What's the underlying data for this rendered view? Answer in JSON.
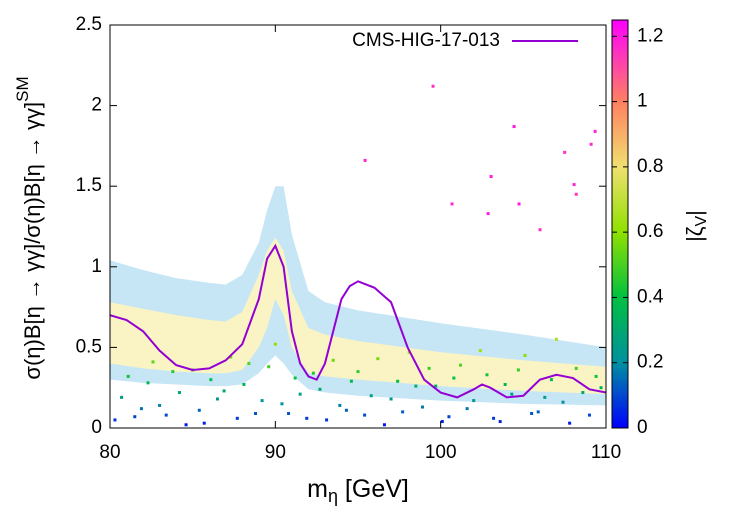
{
  "chart_data": {
    "type": "scatter",
    "xlabel": {
      "text": "m",
      "sub": "η",
      "tail": " [GeV]"
    },
    "ylabel": {
      "text": "σ(η)B[η → γγ]/σ(η)B[η → γγ]",
      "sup": "SM"
    },
    "clabel": {
      "text": "|ζ",
      "sub": "V",
      "tail": "|"
    },
    "xlim": [
      80,
      110
    ],
    "xticks": [
      80,
      90,
      100,
      110
    ],
    "ylim": [
      0,
      2.5
    ],
    "yticks": [
      0,
      0.5,
      1,
      1.5,
      2,
      2.5
    ],
    "clim": [
      0,
      1.25
    ],
    "cticks": [
      0,
      0.2,
      0.4,
      0.6,
      0.8,
      1,
      1.2
    ],
    "colormap": [
      {
        "value": 0,
        "color": "#0000ff"
      },
      {
        "value": 0.2,
        "color": "#0090a0"
      },
      {
        "value": 0.4,
        "color": "#00c040"
      },
      {
        "value": 0.6,
        "color": "#90e000"
      },
      {
        "value": 0.8,
        "color": "#f0e070"
      },
      {
        "value": 1.0,
        "color": "#ff8060"
      },
      {
        "value": 1.25,
        "color": "#ff00ff"
      }
    ],
    "bands": [
      {
        "color": "#c6e6f6",
        "x": [
          80,
          82,
          84,
          86,
          87,
          88,
          89,
          89.5,
          90,
          90.5,
          91,
          92,
          93,
          95,
          100,
          105,
          110
        ],
        "upper": [
          1.04,
          0.98,
          0.93,
          0.9,
          0.89,
          0.95,
          1.15,
          1.35,
          1.5,
          1.5,
          1.2,
          0.85,
          0.78,
          0.73,
          0.65,
          0.58,
          0.5
        ],
        "lower": [
          0.3,
          0.28,
          0.27,
          0.26,
          0.26,
          0.27,
          0.34,
          0.4,
          0.45,
          0.4,
          0.33,
          0.24,
          0.22,
          0.2,
          0.17,
          0.15,
          0.14
        ]
      },
      {
        "color": "#faf3c4",
        "x": [
          80,
          82,
          84,
          86,
          87,
          88,
          89,
          89.5,
          90,
          90.5,
          91,
          92,
          93,
          95,
          100,
          105,
          110
        ],
        "upper": [
          0.78,
          0.74,
          0.7,
          0.67,
          0.66,
          0.72,
          0.95,
          1.1,
          1.18,
          1.1,
          0.85,
          0.62,
          0.58,
          0.54,
          0.47,
          0.42,
          0.38
        ],
        "lower": [
          0.4,
          0.37,
          0.35,
          0.34,
          0.34,
          0.36,
          0.5,
          0.62,
          0.8,
          0.7,
          0.5,
          0.34,
          0.32,
          0.3,
          0.26,
          0.23,
          0.21
        ]
      }
    ],
    "points": {
      "x": [
        80.3,
        81.1,
        81.9,
        82.6,
        83.4,
        84.2,
        85.0,
        85.7,
        86.5,
        87.3,
        88.1,
        88.8,
        89.6,
        90.4,
        91.2,
        91.9,
        92.7,
        93.5,
        94.3,
        95.0,
        95.8,
        96.6,
        97.4,
        98.1,
        98.9,
        99.7,
        100.5,
        101.2,
        102.0,
        102.8,
        103.6,
        104.3,
        105.1,
        105.9,
        106.7,
        107.4,
        108.2,
        109.0,
        109.7,
        80.7,
        81.5,
        82.3,
        83.0,
        83.8,
        84.6,
        85.4,
        86.1,
        86.9,
        87.7,
        88.4,
        89.2,
        90.0,
        90.8,
        91.5,
        92.3,
        93.1,
        93.9,
        94.6,
        95.4,
        96.2,
        97.0,
        97.7,
        98.5,
        99.3,
        100.1,
        100.8,
        101.6,
        102.4,
        103.2,
        103.9,
        104.7,
        105.5,
        106.3,
        107.0,
        107.8,
        108.6,
        109.4,
        99.54,
        104.44,
        95.43,
        109.1,
        109.34,
        107.5,
        103.05,
        108.07,
        108.2,
        100.69,
        104.74,
        102.87,
        106.01
      ],
      "y": [
        0.05,
        0.32,
        0.12,
        0.41,
        0.08,
        0.22,
        0.36,
        0.03,
        0.18,
        0.44,
        0.27,
        0.09,
        0.38,
        0.15,
        0.31,
        0.06,
        0.24,
        0.42,
        0.11,
        0.35,
        0.2,
        0.02,
        0.29,
        0.47,
        0.13,
        0.26,
        0.07,
        0.39,
        0.17,
        0.33,
        0.04,
        0.21,
        0.45,
        0.1,
        0.3,
        0.16,
        0.37,
        0.08,
        0.25,
        0.19,
        0.07,
        0.28,
        0.14,
        0.35,
        0.02,
        0.11,
        0.3,
        0.23,
        0.06,
        0.4,
        0.17,
        0.52,
        0.09,
        0.21,
        0.34,
        0.05,
        0.14,
        0.29,
        0.08,
        0.43,
        0.18,
        0.1,
        0.26,
        0.37,
        0.04,
        0.31,
        0.12,
        0.48,
        0.06,
        0.27,
        0.36,
        0.09,
        0.19,
        0.55,
        0.03,
        0.22,
        0.32,
        2.12,
        1.87,
        1.66,
        1.76,
        1.84,
        1.71,
        1.56,
        1.51,
        1.45,
        1.39,
        1.39,
        1.33,
        1.23
      ],
      "z": [
        0.07,
        0.42,
        0.16,
        0.53,
        0.1,
        0.29,
        0.47,
        0.04,
        0.23,
        0.57,
        0.35,
        0.12,
        0.49,
        0.2,
        0.4,
        0.08,
        0.31,
        0.55,
        0.14,
        0.46,
        0.26,
        0.03,
        0.38,
        0.61,
        0.17,
        0.34,
        0.09,
        0.51,
        0.22,
        0.43,
        0.05,
        0.27,
        0.59,
        0.13,
        0.39,
        0.21,
        0.48,
        0.1,
        0.33,
        0.25,
        0.09,
        0.36,
        0.18,
        0.46,
        0.03,
        0.14,
        0.39,
        0.3,
        0.08,
        0.52,
        0.22,
        0.6,
        0.12,
        0.27,
        0.44,
        0.07,
        0.18,
        0.38,
        0.1,
        0.56,
        0.23,
        0.13,
        0.34,
        0.48,
        0.05,
        0.4,
        0.16,
        0.62,
        0.08,
        0.35,
        0.47,
        0.12,
        0.25,
        0.65,
        0.04,
        0.29,
        0.42,
        1.15,
        1.2,
        1.18,
        1.17,
        1.19,
        1.16,
        1.2,
        1.18,
        1.15,
        1.17,
        1.2,
        1.19,
        1.16
      ]
    },
    "series": [
      {
        "name": "CMS-HIG-17-013",
        "color": "#9400d3",
        "x": [
          80,
          81,
          82,
          83,
          84,
          85,
          86,
          87,
          88,
          89,
          89.5,
          90,
          90.5,
          91,
          91.5,
          92,
          92.5,
          93,
          93.5,
          94,
          94.5,
          95,
          96,
          97,
          98,
          99,
          100,
          101,
          102,
          102.5,
          103,
          104,
          105,
          106,
          107,
          108,
          109,
          110
        ],
        "values": [
          0.7,
          0.67,
          0.6,
          0.48,
          0.39,
          0.36,
          0.37,
          0.42,
          0.52,
          0.8,
          1.05,
          1.13,
          1.0,
          0.6,
          0.4,
          0.32,
          0.3,
          0.4,
          0.6,
          0.8,
          0.88,
          0.91,
          0.87,
          0.78,
          0.5,
          0.3,
          0.22,
          0.19,
          0.24,
          0.27,
          0.25,
          0.19,
          0.2,
          0.3,
          0.33,
          0.31,
          0.24,
          0.22
        ]
      }
    ]
  }
}
